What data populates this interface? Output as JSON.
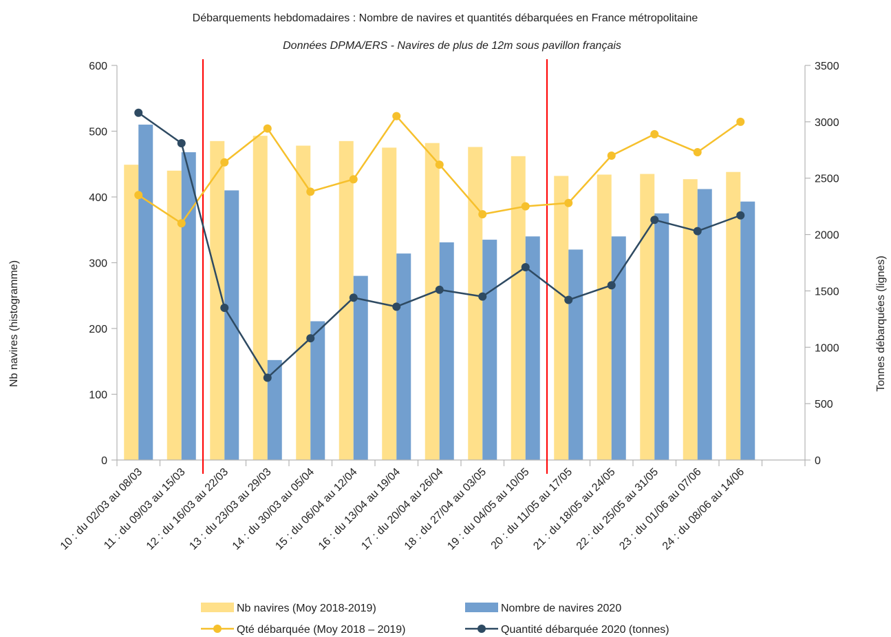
{
  "chart_data": {
    "type": "bar",
    "title": "Débarquements hebdomadaires : Nombre de navires et quantités débarquées en France métropolitaine",
    "subtitle": "Données DPMA/ERS - Navires de plus de 12m sous pavillon français",
    "ylabel_left": "Nb navires (histogramme)",
    "ylabel_right": "Tonnes débarquées (lignes)",
    "ylim_left": [
      0,
      600
    ],
    "ylim_right": [
      0,
      3500
    ],
    "yticks_left": [
      0,
      100,
      200,
      300,
      400,
      500,
      600
    ],
    "yticks_right": [
      0,
      500,
      1000,
      1500,
      2000,
      2500,
      3000,
      3500
    ],
    "categories": [
      "10 : du 02/03 au 08/03",
      "11 : du 09/03 au 15/03",
      "12 : du 16/03 au 22/03",
      "13 : du 23/03 au 29/03",
      "14 : du 30/03 au 05/04",
      "15 : du 06/04 au 12/04",
      "16 : du 13/04 au 19/04",
      "17 : du 20/04 au 26/04",
      "18 : du 27/04 au 03/05",
      "19 : du 04/05 au 10/05",
      "20 : du 11/05 au 17/05",
      "21 : du 18/05 au 24/05",
      "22 : du 25/05 au 31/05",
      "23 : du 01/06 au 07/06",
      "24 : du 08/06 au 14/06"
    ],
    "extra_empty_category_slot": true,
    "bar_series": [
      {
        "name": "Nb navires (Moy 2018-2019)",
        "color": "#FFE08A",
        "axis": "left",
        "values": [
          449,
          440,
          485,
          493,
          478,
          485,
          475,
          482,
          476,
          462,
          432,
          434,
          435,
          427,
          438
        ]
      },
      {
        "name": "Nombre de navires 2020",
        "color": "#729FCF",
        "axis": "left",
        "values": [
          510,
          468,
          410,
          152,
          211,
          280,
          314,
          331,
          335,
          340,
          320,
          340,
          375,
          412,
          393
        ]
      }
    ],
    "line_series": [
      {
        "name": "Qté débarquée (Moy 2018 – 2019)",
        "color": "#F6C02C",
        "axis": "right",
        "values": [
          2350,
          2100,
          2640,
          2940,
          2380,
          2490,
          3050,
          2620,
          2180,
          2250,
          2280,
          2700,
          2890,
          2730,
          3000
        ]
      },
      {
        "name": "Quantité débarquée 2020 (tonnes)",
        "color": "#2E4A62",
        "axis": "right",
        "values": [
          3080,
          2810,
          1350,
          730,
          1080,
          1440,
          1360,
          1510,
          1450,
          1710,
          1420,
          1550,
          2130,
          2030,
          2170
        ]
      }
    ],
    "vertical_markers": [
      {
        "after_index": 1,
        "color": "#FF0000"
      },
      {
        "after_index": 9,
        "color": "#FF0000"
      }
    ],
    "grid": false,
    "legend_position": "bottom"
  }
}
